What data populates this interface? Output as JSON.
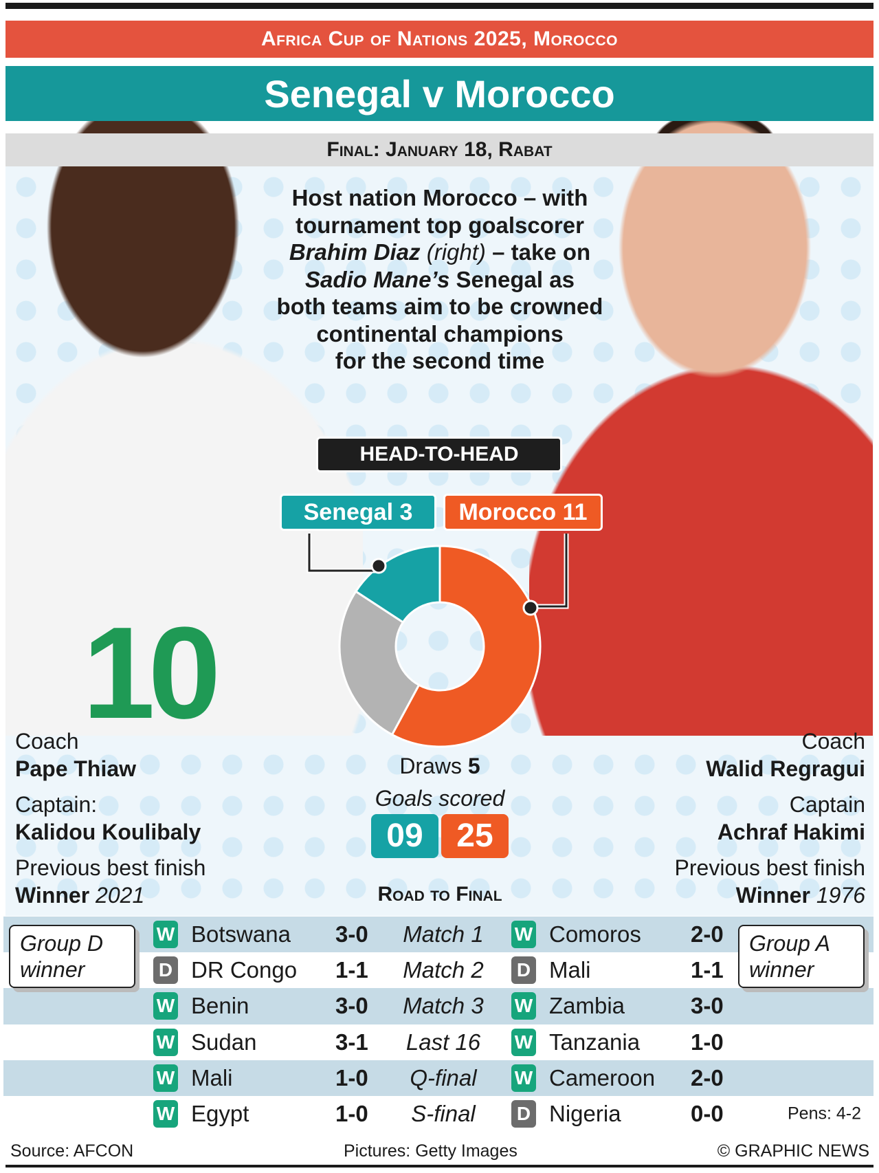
{
  "header": {
    "banner": "Africa Cup of Nations 2025, Morocco",
    "title": "Senegal v Morocco",
    "date": "Final: January 18, Rabat"
  },
  "intro": {
    "l1": "Host nation Morocco – with",
    "l2": "tournament top goalscorer",
    "l3a": "Brahim Diaz",
    "l3b": " (right)",
    "l3c": " – take on",
    "l4a": "Sadio Mane’s",
    "l4b": " Senegal as",
    "l5": "both teams aim to be crowned",
    "l6": "continental champions",
    "l7": "for the second time"
  },
  "head_to_head": {
    "title": "HEAD-TO-HEAD",
    "senegal_label": "Senegal 3",
    "morocco_label": "Morocco 11",
    "draws_label": "Draws",
    "draws": "5",
    "goals_label": "Goals scored",
    "senegal_goals": "09",
    "morocco_goals": "25"
  },
  "chart_data": {
    "type": "pie",
    "variant": "donut",
    "categories": [
      "Senegal",
      "Draws",
      "Morocco"
    ],
    "values": [
      3,
      5,
      11
    ],
    "colors": {
      "Senegal": "#16a2a5",
      "Draws": "#b3b3b3",
      "Morocco": "#ef5a24"
    }
  },
  "senegal": {
    "coach_label": "Coach",
    "coach": "Pape Thiaw",
    "captain_label": "Captain:",
    "captain": "Kalidou Koulibaly",
    "best_label": "Previous best finish",
    "best": "Winner",
    "best_year": "2021",
    "group": "Group D winner",
    "shirt_number": "10"
  },
  "morocco": {
    "coach_label": "Coach",
    "coach": "Walid Regragui",
    "captain_label": "Captain",
    "captain": "Achraf Hakimi",
    "best_label": "Previous best finish",
    "best": "Winner",
    "best_year": "1976",
    "group": "Group A winner"
  },
  "road": {
    "title": "Road to Final",
    "rows": [
      {
        "stage": "Match 1",
        "sen_res": "W",
        "sen_opp": "Botswana",
        "sen_score": "3-0",
        "mor_res": "W",
        "mor_opp": "Comoros",
        "mor_score": "2-0"
      },
      {
        "stage": "Match 2",
        "sen_res": "D",
        "sen_opp": "DR Congo",
        "sen_score": "1-1",
        "mor_res": "D",
        "mor_opp": "Mali",
        "mor_score": "1-1"
      },
      {
        "stage": "Match 3",
        "sen_res": "W",
        "sen_opp": "Benin",
        "sen_score": "3-0",
        "mor_res": "W",
        "mor_opp": "Zambia",
        "mor_score": "3-0"
      },
      {
        "stage": "Last 16",
        "sen_res": "W",
        "sen_opp": "Sudan",
        "sen_score": "3-1",
        "mor_res": "W",
        "mor_opp": "Tanzania",
        "mor_score": "1-0"
      },
      {
        "stage": "Q-final",
        "sen_res": "W",
        "sen_opp": "Mali",
        "sen_score": "1-0",
        "mor_res": "W",
        "mor_opp": "Cameroon",
        "mor_score": "2-0"
      },
      {
        "stage": "S-final",
        "sen_res": "W",
        "sen_opp": "Egypt",
        "sen_score": "1-0",
        "mor_res": "D",
        "mor_opp": "Nigeria",
        "mor_score": "0-0"
      }
    ],
    "pens": "Pens: 4-2"
  },
  "footer": {
    "source": "Source: AFCON",
    "pictures": "Pictures: Getty Images",
    "copyright": "© GRAPHIC NEWS"
  }
}
